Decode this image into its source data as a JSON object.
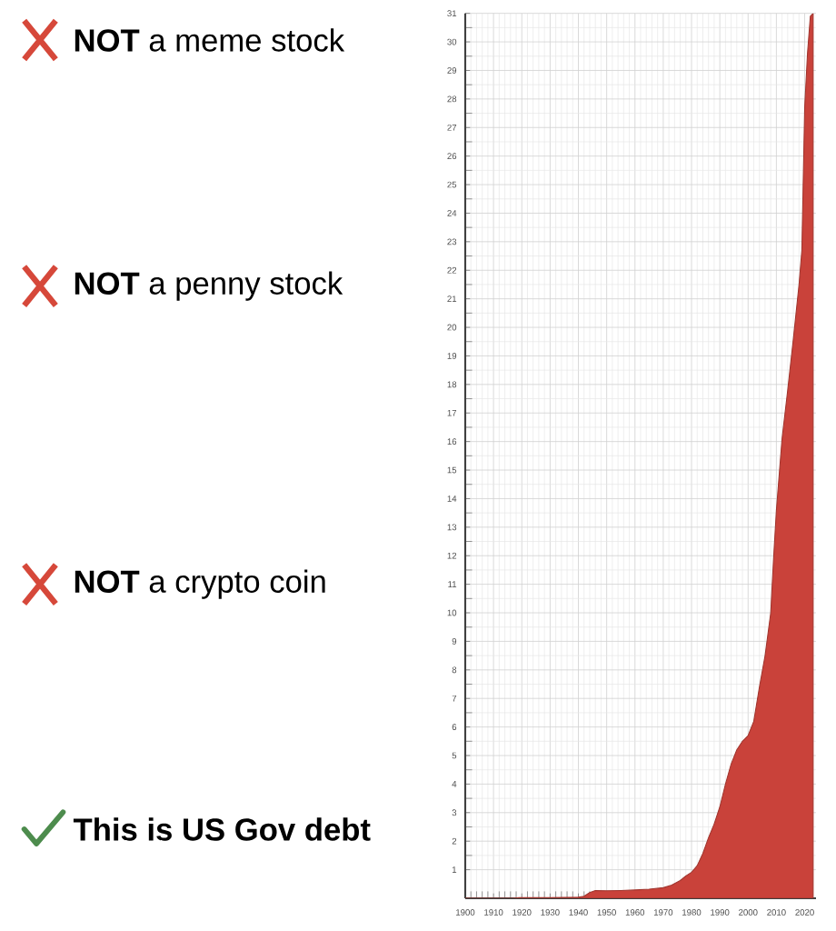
{
  "chart_data": {
    "type": "area",
    "annotations": [
      "**NOT** a meme stock",
      "**NOT** a penny stock",
      "**NOT** a crypto coin",
      "This is US Gov debt"
    ],
    "x": [
      1900,
      1917,
      1919,
      1930,
      1940,
      1942,
      1944,
      1946,
      1950,
      1955,
      1960,
      1965,
      1970,
      1973,
      1976,
      1978,
      1980,
      1982,
      1984,
      1986,
      1988,
      1990,
      1992,
      1994,
      1996,
      1998,
      2000,
      2002,
      2004,
      2006,
      2008,
      2009,
      2010,
      2012,
      2014,
      2016,
      2018,
      2019,
      2020,
      2021,
      2022,
      2023
    ],
    "series": [
      {
        "color": "#c9423a",
        "values": [
          0,
          0,
          0.02,
          0.02,
          0.04,
          0.07,
          0.2,
          0.27,
          0.26,
          0.27,
          0.29,
          0.32,
          0.37,
          0.46,
          0.62,
          0.78,
          0.91,
          1.14,
          1.57,
          2.12,
          2.6,
          3.2,
          4.0,
          4.7,
          5.2,
          5.5,
          5.7,
          6.2,
          7.4,
          8.5,
          10.0,
          11.9,
          13.6,
          16.1,
          17.8,
          19.6,
          21.5,
          22.7,
          27.7,
          29.6,
          30.9,
          31
        ]
      }
    ],
    "xlim": [
      1900,
      2024
    ],
    "ylim": [
      0,
      31
    ],
    "xticks": [
      1900,
      1910,
      1920,
      1930,
      1940,
      1950,
      1960,
      1970,
      1980,
      1990,
      2000,
      2010,
      2020
    ],
    "yticks": [
      1,
      2,
      3,
      4,
      5,
      6,
      7,
      8,
      9,
      10,
      11,
      12,
      13,
      14,
      15,
      16,
      17,
      18,
      19,
      20,
      21,
      22,
      23,
      24,
      25,
      26,
      27,
      28,
      29,
      30,
      31
    ],
    "grid": true
  }
}
